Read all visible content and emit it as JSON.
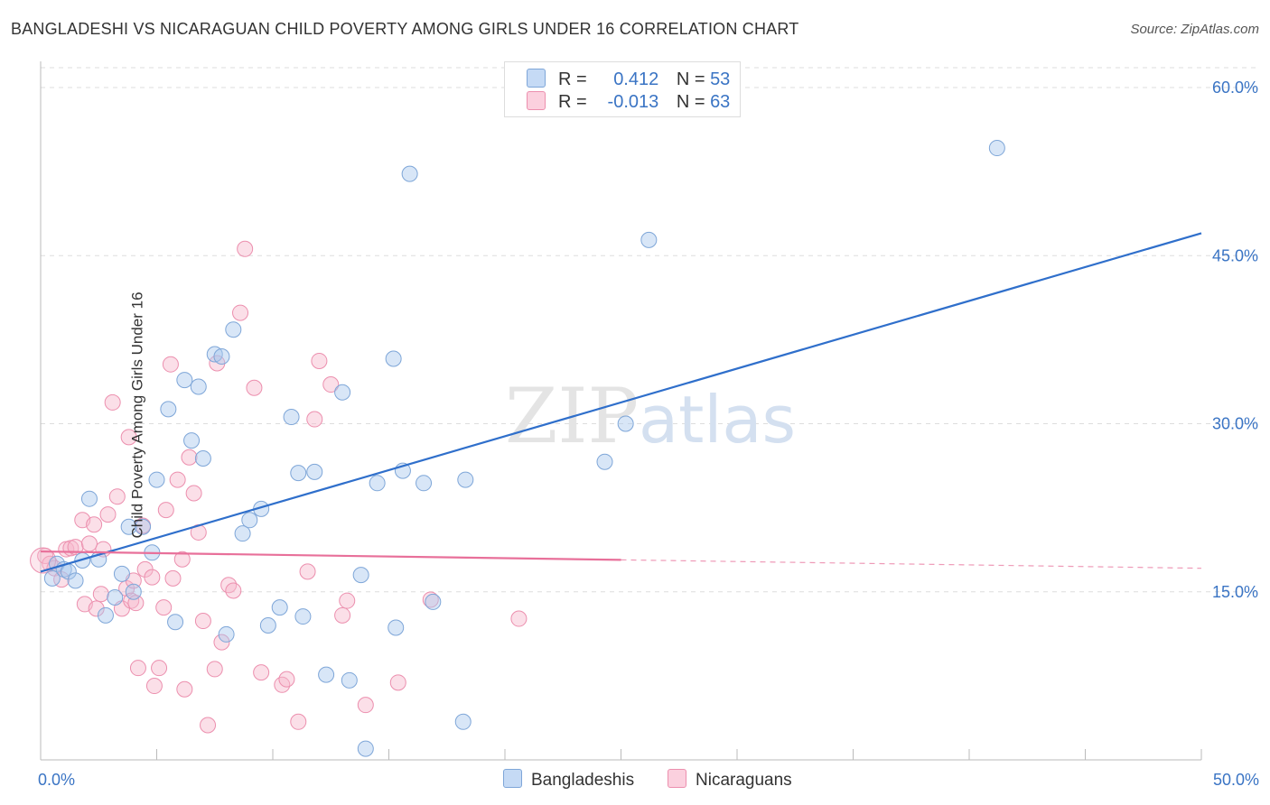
{
  "title": "BANGLADESHI VS NICARAGUAN CHILD POVERTY AMONG GIRLS UNDER 16 CORRELATION CHART",
  "source": "Source: ZipAtlas.com",
  "watermark": "ZIPatlas",
  "legend": {
    "rows": [
      {
        "r_label": "R =",
        "r_value": "0.412",
        "n_label": "N =",
        "n_value": "53"
      },
      {
        "r_label": "R =",
        "r_value": "-0.013",
        "n_label": "N =",
        "n_value": "63"
      }
    ]
  },
  "bottom_legend": {
    "bangladeshis": "Bangladeshis",
    "nicaraguans": "Nicaraguans"
  },
  "colors": {
    "blue_fill": "#a9c8ee",
    "blue_stroke": "#7ea6d8",
    "blue_line": "#2f6fcb",
    "pink_fill": "#f6b9cd",
    "pink_stroke": "#ec8fae",
    "pink_line": "#e8709a",
    "tick_text": "#3a74c4",
    "grid": "#dddddd"
  },
  "chart_data": {
    "type": "scatter",
    "title": "BANGLADESHI VS NICARAGUAN CHILD POVERTY AMONG GIRLS UNDER 16 CORRELATION CHART",
    "xlabel": "",
    "ylabel": "Child Poverty Among Girls Under 16",
    "xlim": [
      0,
      50
    ],
    "ylim": [
      0,
      60
    ],
    "x_tick_labels": [
      "0.0%",
      "50.0%"
    ],
    "y_ticks": [
      15,
      30,
      45,
      60
    ],
    "y_tick_labels": [
      "15.0%",
      "30.0%",
      "45.0%",
      "60.0%"
    ],
    "series": [
      {
        "name": "Bangladeshis",
        "r": 0.412,
        "n": 53,
        "trend": {
          "x0": 0,
          "y0": 16.8,
          "x1": 50,
          "y1": 47.0,
          "dashed_from": null
        },
        "points": [
          [
            0.5,
            16.2
          ],
          [
            0.7,
            17.5
          ],
          [
            1.0,
            17.0
          ],
          [
            1.2,
            16.8
          ],
          [
            1.5,
            16.0
          ],
          [
            1.8,
            17.8
          ],
          [
            2.1,
            23.3
          ],
          [
            2.5,
            17.9
          ],
          [
            2.8,
            12.9
          ],
          [
            3.2,
            14.5
          ],
          [
            3.5,
            16.6
          ],
          [
            3.8,
            20.8
          ],
          [
            4.0,
            15.0
          ],
          [
            4.4,
            20.8
          ],
          [
            4.8,
            18.5
          ],
          [
            5.0,
            25.0
          ],
          [
            5.5,
            31.3
          ],
          [
            5.8,
            12.3
          ],
          [
            6.2,
            33.9
          ],
          [
            6.5,
            28.5
          ],
          [
            6.8,
            33.3
          ],
          [
            7.0,
            26.9
          ],
          [
            7.5,
            36.2
          ],
          [
            7.8,
            36.0
          ],
          [
            8.0,
            11.2
          ],
          [
            8.3,
            38.4
          ],
          [
            8.7,
            20.2
          ],
          [
            9.0,
            21.4
          ],
          [
            9.5,
            22.4
          ],
          [
            9.8,
            12.0
          ],
          [
            10.3,
            13.6
          ],
          [
            10.8,
            30.6
          ],
          [
            11.1,
            25.6
          ],
          [
            11.3,
            12.8
          ],
          [
            11.8,
            25.7
          ],
          [
            12.3,
            7.6
          ],
          [
            13.0,
            32.8
          ],
          [
            13.3,
            7.1
          ],
          [
            13.8,
            16.5
          ],
          [
            14.0,
            1.0
          ],
          [
            14.5,
            24.7
          ],
          [
            15.2,
            35.8
          ],
          [
            15.3,
            11.8
          ],
          [
            15.6,
            25.8
          ],
          [
            15.9,
            52.3
          ],
          [
            16.5,
            24.7
          ],
          [
            16.9,
            14.1
          ],
          [
            18.2,
            3.4
          ],
          [
            18.3,
            25.0
          ],
          [
            24.3,
            26.6
          ],
          [
            25.2,
            30.0
          ],
          [
            26.2,
            46.4
          ],
          [
            41.2,
            54.6
          ]
        ]
      },
      {
        "name": "Nicaraguans",
        "r": -0.013,
        "n": 63,
        "trend": {
          "x0": 0,
          "y0": 18.6,
          "x1": 50,
          "y1": 17.1,
          "dashed_from": 25.0
        },
        "points": [
          [
            0.2,
            18.2
          ],
          [
            0.4,
            17.5
          ],
          [
            0.6,
            17.1
          ],
          [
            0.9,
            16.1
          ],
          [
            1.1,
            18.8
          ],
          [
            1.3,
            18.9
          ],
          [
            1.5,
            19.0
          ],
          [
            1.8,
            21.4
          ],
          [
            1.9,
            13.9
          ],
          [
            2.1,
            19.3
          ],
          [
            2.3,
            21.0
          ],
          [
            2.4,
            13.5
          ],
          [
            2.6,
            14.8
          ],
          [
            2.7,
            18.8
          ],
          [
            2.9,
            21.9
          ],
          [
            3.1,
            31.9
          ],
          [
            3.3,
            23.5
          ],
          [
            3.5,
            13.5
          ],
          [
            3.7,
            15.3
          ],
          [
            3.8,
            28.8
          ],
          [
            3.9,
            14.2
          ],
          [
            4.0,
            16.0
          ],
          [
            4.1,
            14.0
          ],
          [
            4.2,
            8.2
          ],
          [
            4.4,
            20.9
          ],
          [
            4.5,
            17.0
          ],
          [
            4.8,
            16.3
          ],
          [
            4.9,
            6.6
          ],
          [
            5.1,
            8.2
          ],
          [
            5.3,
            13.6
          ],
          [
            5.4,
            22.3
          ],
          [
            5.6,
            35.3
          ],
          [
            5.7,
            16.2
          ],
          [
            5.9,
            25.0
          ],
          [
            6.1,
            17.9
          ],
          [
            6.2,
            6.3
          ],
          [
            6.4,
            27.0
          ],
          [
            6.6,
            23.8
          ],
          [
            6.8,
            20.3
          ],
          [
            7.0,
            12.4
          ],
          [
            7.2,
            3.1
          ],
          [
            7.5,
            8.1
          ],
          [
            7.6,
            35.4
          ],
          [
            7.8,
            10.5
          ],
          [
            8.1,
            15.6
          ],
          [
            8.3,
            15.1
          ],
          [
            8.6,
            39.9
          ],
          [
            8.8,
            45.6
          ],
          [
            9.2,
            33.2
          ],
          [
            9.5,
            7.8
          ],
          [
            10.4,
            6.7
          ],
          [
            10.6,
            7.2
          ],
          [
            11.1,
            3.4
          ],
          [
            11.5,
            16.8
          ],
          [
            11.8,
            30.4
          ],
          [
            12.0,
            35.6
          ],
          [
            12.5,
            33.5
          ],
          [
            13.0,
            12.9
          ],
          [
            13.2,
            14.2
          ],
          [
            14.0,
            4.9
          ],
          [
            15.4,
            6.9
          ],
          [
            16.8,
            14.3
          ],
          [
            20.6,
            12.6
          ]
        ]
      }
    ]
  }
}
